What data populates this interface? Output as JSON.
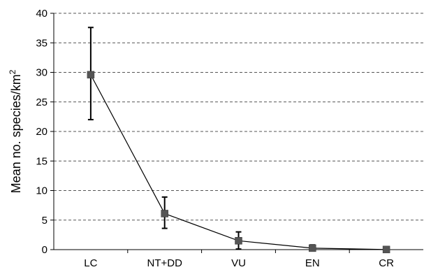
{
  "chart_data": {
    "type": "line",
    "title": "",
    "xlabel": "",
    "ylabel": "Mean no. species/km",
    "ylabel_superscript": "2",
    "categories": [
      "LC",
      "NT+DD",
      "VU",
      "EN",
      "CR"
    ],
    "series": [
      {
        "values": [
          29.6,
          6.1,
          1.5,
          0.25,
          0.02
        ],
        "error_low": [
          22.0,
          3.6,
          0.1,
          0.0,
          0.0
        ],
        "error_high": [
          37.6,
          8.9,
          3.0,
          0.8,
          0.1
        ],
        "color": "#555555"
      }
    ],
    "ylim": [
      0,
      40
    ],
    "yticks": [
      0,
      5,
      10,
      15,
      20,
      25,
      30,
      35,
      40
    ],
    "grid": "horizontal-dashed",
    "legend": "none"
  }
}
